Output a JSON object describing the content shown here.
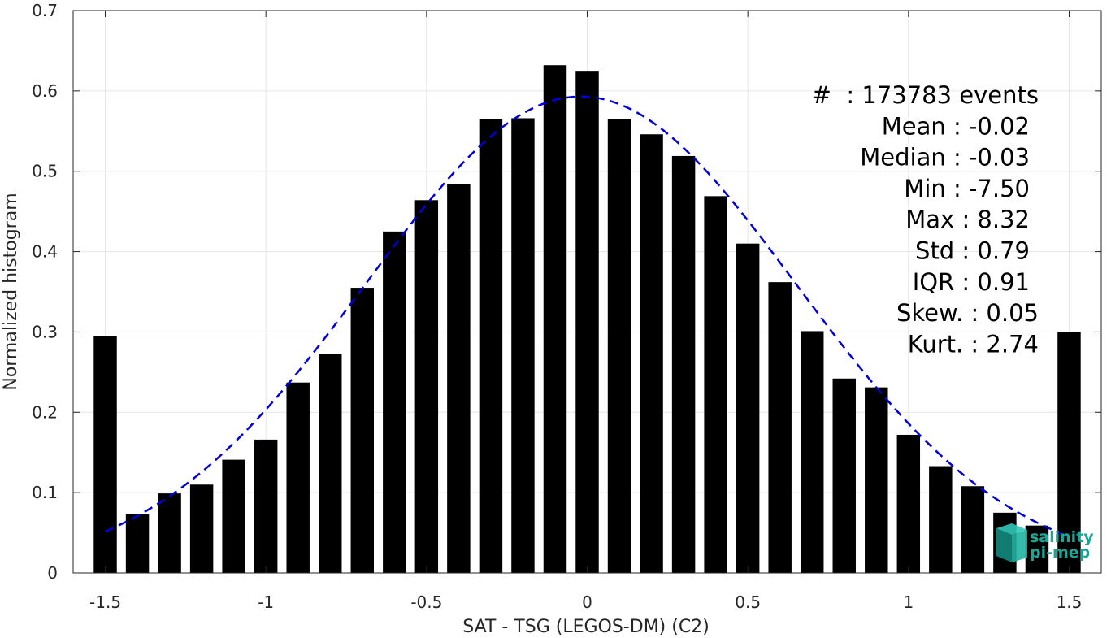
{
  "chart_data": {
    "type": "bar",
    "xlabel": "SAT - TSG (LEGOS-DM) (C2)",
    "ylabel": "Normalized histogram",
    "xlim": [
      -1.6,
      1.6
    ],
    "ylim": [
      0,
      0.7
    ],
    "xticks": [
      -1.5,
      -1,
      -0.5,
      0,
      0.5,
      1,
      1.5
    ],
    "xtick_labels": [
      "-1.5",
      "-1",
      "-0.5",
      "0",
      "0.5",
      "1",
      "1.5"
    ],
    "yticks": [
      0,
      0.1,
      0.2,
      0.3,
      0.4,
      0.5,
      0.6,
      0.7
    ],
    "ytick_labels": [
      "0",
      "0.1",
      "0.2",
      "0.3",
      "0.4",
      "0.5",
      "0.6",
      "0.7"
    ],
    "grid": true,
    "bar_color": "#000000",
    "fit_color": "#0000dd",
    "bin_width": 0.1,
    "x": [
      -1.5,
      -1.4,
      -1.3,
      -1.2,
      -1.1,
      -1.0,
      -0.9,
      -0.8,
      -0.7,
      -0.6,
      -0.5,
      -0.4,
      -0.3,
      -0.2,
      -0.1,
      0.0,
      0.1,
      0.2,
      0.3,
      0.4,
      0.5,
      0.6,
      0.7,
      0.8,
      0.9,
      1.0,
      1.1,
      1.2,
      1.3,
      1.4,
      1.5
    ],
    "values": [
      0.295,
      0.073,
      0.099,
      0.11,
      0.141,
      0.166,
      0.237,
      0.273,
      0.355,
      0.425,
      0.464,
      0.484,
      0.565,
      0.566,
      0.632,
      0.625,
      0.565,
      0.546,
      0.519,
      0.469,
      0.41,
      0.362,
      0.301,
      0.242,
      0.231,
      0.172,
      0.133,
      0.108,
      0.075,
      0.059,
      0.3
    ],
    "fit": {
      "style": "dashed",
      "mean": -0.02,
      "std": 0.67,
      "peak": 0.593,
      "x_range": [
        -1.5,
        1.5
      ]
    },
    "stats": [
      {
        "label": "#  : 173783 events"
      },
      {
        "label": "Mean : -0.02"
      },
      {
        "label": "Median : -0.03"
      },
      {
        "label": "Min : -7.50"
      },
      {
        "label": "Max : 8.32"
      },
      {
        "label": "Std : 0.79"
      },
      {
        "label": "IQR : 0.91"
      },
      {
        "label": "Skew. : 0.05"
      },
      {
        "label": "Kurt. : 2.74"
      }
    ]
  },
  "logo": {
    "line1": "salinity",
    "line2": "pi-mep",
    "color": "#1aa596"
  }
}
